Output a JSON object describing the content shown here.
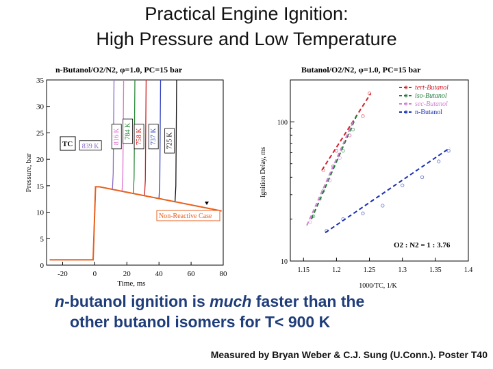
{
  "slide": {
    "title_line1": "Practical Engine Ignition:",
    "title_line2": "High Pressure and Low Temperature",
    "bullet": {
      "part1": "n",
      "part2": "-butanol ignition is ",
      "part3": "much",
      "part4": " faster than the",
      "line2": "other butanol isomers for T< 900 K"
    },
    "credit": "Measured by Bryan Weber & C.J. Sung (U.Conn.). Poster T40"
  },
  "colors": {
    "text_blue": "#1f3d7a",
    "orange": "#e8601c",
    "tert": "#d0202a",
    "iso": "#1f7a3a",
    "sec": "#d080d0",
    "n": "#1a2fb0"
  },
  "chart_data": [
    {
      "type": "line",
      "title": "n-Butanol/O2/N2, φ=1.0, PC=15 bar",
      "xlabel": "Time, ms",
      "ylabel": "Pressure, bar",
      "xlim": [
        -30,
        80
      ],
      "ylim": [
        0,
        35
      ],
      "xticks": [
        "-20",
        "0",
        "20",
        "40",
        "60",
        "80"
      ],
      "yticks": [
        "0",
        "5",
        "10",
        "15",
        "20",
        "25",
        "30",
        "35"
      ],
      "legend_title": "TC",
      "annotation": "Non-Reactive Case",
      "series": [
        {
          "name": "839 K",
          "color": "#8a6ac8",
          "ignition_time": 11,
          "label_y": 22.5
        },
        {
          "name": "816 K",
          "color": "#e070d0",
          "ignition_time": 17,
          "label_y": 24.3
        },
        {
          "name": "784 K",
          "color": "#2a8a3a",
          "ignition_time": 24,
          "label_y": 25.3
        },
        {
          "name": "758 K",
          "color": "#d02020",
          "ignition_time": 31,
          "label_y": 24.3
        },
        {
          "name": "737 K",
          "color": "#3040c0",
          "ignition_time": 40,
          "label_y": 24.3
        },
        {
          "name": "725 K",
          "color": "#111111",
          "ignition_time": 50,
          "label_y": 23.5
        }
      ],
      "non_reactive_color": "#e8601c"
    },
    {
      "type": "scatter",
      "title": "Butanol/O2/N2, φ=1.0, PC=15 bar",
      "xlabel": "1000/TC, 1/K",
      "ylabel": "Ignition Delay, ms",
      "xlim": [
        1.13,
        1.4
      ],
      "ylim": [
        10,
        200
      ],
      "y_scale": "log",
      "xticks": [
        "1.15",
        "1.2",
        "1.25",
        "1.3",
        "1.35",
        "1.4"
      ],
      "yticks": [
        "10",
        "100"
      ],
      "annotation": "O2 : N2 = 1 : 3.76",
      "legend_position": "top-right",
      "series": [
        {
          "name": "tert-Butanol",
          "color": "#d0202a",
          "fit": [
            [
              1.178,
              45
            ],
            [
              1.252,
              160
            ]
          ],
          "points": [
            [
              1.18,
              45
            ],
            [
              1.2,
              62
            ],
            [
              1.22,
              80
            ],
            [
              1.24,
              110
            ],
            [
              1.25,
              160
            ]
          ]
        },
        {
          "name": "iso-Butanol",
          "color": "#1f7a3a",
          "fit": [
            [
              1.162,
              20
            ],
            [
              1.232,
              115
            ]
          ],
          "points": [
            [
              1.165,
              21
            ],
            [
              1.18,
              32
            ],
            [
              1.195,
              48
            ],
            [
              1.21,
              62
            ],
            [
              1.225,
              88
            ]
          ]
        },
        {
          "name": "sec-Butanol",
          "color": "#d080d0",
          "fit": [
            [
              1.155,
              18
            ],
            [
              1.225,
              100
            ]
          ],
          "points": [
            [
              1.16,
              19
            ],
            [
              1.175,
              28
            ],
            [
              1.19,
              38
            ],
            [
              1.205,
              55
            ],
            [
              1.22,
              80
            ]
          ]
        },
        {
          "name": "n-Butanol",
          "color": "#1a2fb0",
          "fit": [
            [
              1.183,
              16
            ],
            [
              1.372,
              65
            ]
          ],
          "points": [
            [
              1.185,
              16.5
            ],
            [
              1.21,
              20
            ],
            [
              1.24,
              22
            ],
            [
              1.27,
              25
            ],
            [
              1.3,
              35
            ],
            [
              1.33,
              40
            ],
            [
              1.355,
              52
            ],
            [
              1.37,
              62
            ]
          ]
        }
      ]
    }
  ]
}
